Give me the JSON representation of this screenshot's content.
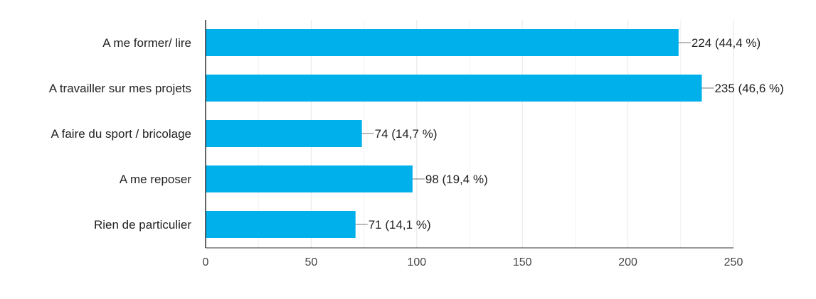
{
  "chart_data": {
    "type": "bar",
    "orientation": "horizontal",
    "title": "",
    "xlabel": "",
    "ylabel": "",
    "categories": [
      "A me former/ lire",
      "A travailler sur mes projets",
      "A faire du sport / bricolage",
      "A me reposer",
      "Rien de particulier"
    ],
    "values": [
      224,
      235,
      74,
      98,
      71
    ],
    "data_labels": [
      "224 (44,4 %)",
      "235 (46,6 %)",
      "74 (14,7 %)",
      "98 (19,4 %)",
      "71 (14,1 %)"
    ],
    "xlim": [
      0,
      250
    ],
    "x_ticks": [
      0,
      50,
      100,
      150,
      200,
      250
    ],
    "x_tick_labels": [
      "0",
      "50",
      "100",
      "150",
      "200",
      "250"
    ],
    "grid": true,
    "legend": "none",
    "colors": {
      "bar": "#00b0ea",
      "grid": "#e6e6e6",
      "axis": "#333333",
      "text": "#222222",
      "tick_text": "#444444",
      "leader": "#777777"
    }
  }
}
